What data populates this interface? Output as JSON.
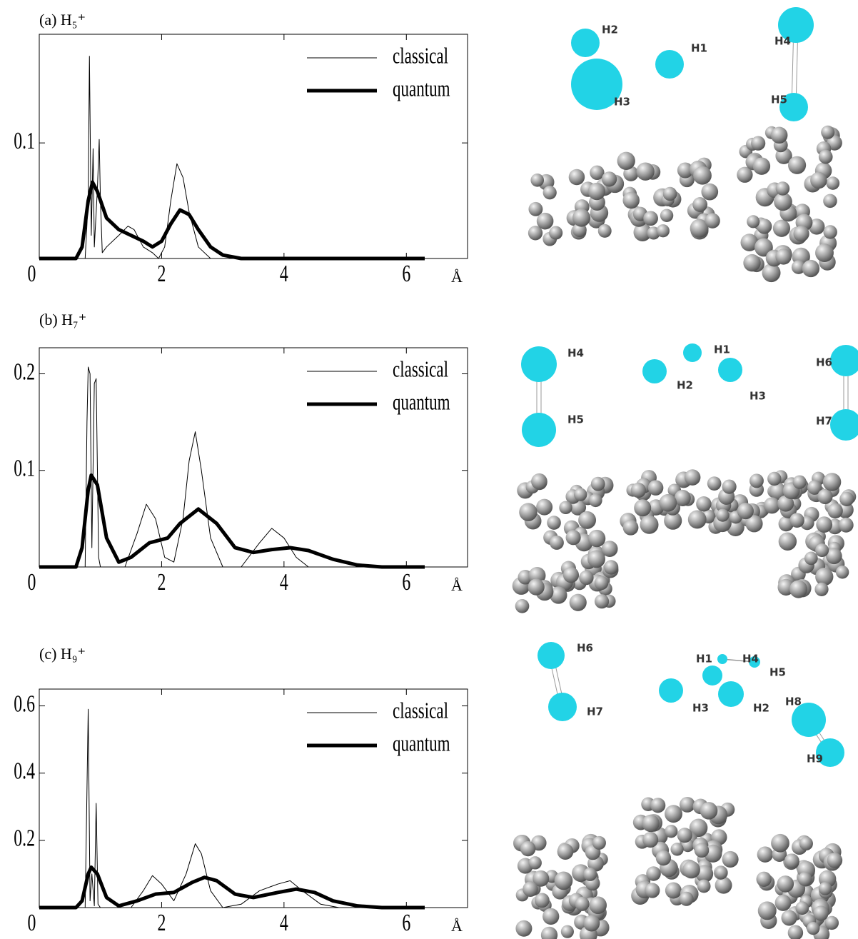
{
  "chart_data": [
    {
      "type": "line",
      "title": "(a) H₅⁺",
      "x_label": "Å",
      "xlim": [
        0,
        7
      ],
      "ylim": [
        0,
        0.194
      ],
      "xticks": [
        0,
        2,
        4,
        6
      ],
      "yticks": [
        0.1
      ],
      "legend": "upper right",
      "series": [
        {
          "name": "classical",
          "color": "#000000",
          "width": 1,
          "x": [
            0,
            0.75,
            0.8,
            0.82,
            0.85,
            0.88,
            0.9,
            0.95,
            0.98,
            1.0,
            1.03,
            1.1,
            1.3,
            1.45,
            1.55,
            1.7,
            1.85,
            1.95,
            2.05,
            2.15,
            2.25,
            2.35,
            2.45,
            2.6,
            2.8,
            6.3
          ],
          "values": [
            0,
            0,
            0.05,
            0.175,
            0.02,
            0.095,
            0.01,
            0.06,
            0.103,
            0.05,
            0.005,
            0.01,
            0.02,
            0.028,
            0.025,
            0.01,
            0.005,
            0,
            0.01,
            0.05,
            0.082,
            0.07,
            0.04,
            0.01,
            0,
            0
          ]
        },
        {
          "name": "quantum",
          "color": "#000000",
          "width": 5,
          "x": [
            0,
            0.6,
            0.7,
            0.8,
            0.87,
            0.95,
            1.1,
            1.3,
            1.5,
            1.7,
            1.85,
            2.0,
            2.15,
            2.3,
            2.45,
            2.6,
            2.8,
            3.0,
            3.3,
            6.3
          ],
          "values": [
            0,
            0,
            0.01,
            0.05,
            0.066,
            0.058,
            0.035,
            0.025,
            0.02,
            0.015,
            0.01,
            0.015,
            0.03,
            0.042,
            0.038,
            0.025,
            0.01,
            0.003,
            0,
            0
          ]
        }
      ]
    },
    {
      "type": "line",
      "title": "(b) H₇⁺",
      "x_label": "Å",
      "xlim": [
        0,
        7
      ],
      "ylim": [
        0,
        0.227
      ],
      "xticks": [
        0,
        2,
        4,
        6
      ],
      "yticks": [
        0.1,
        0.2
      ],
      "legend": "upper right",
      "series": [
        {
          "name": "classical",
          "color": "#000000",
          "width": 1,
          "x": [
            0,
            0.75,
            0.78,
            0.8,
            0.83,
            0.86,
            0.9,
            0.93,
            0.97,
            1.0,
            1.4,
            1.6,
            1.75,
            1.9,
            2.05,
            2.2,
            2.35,
            2.45,
            2.55,
            2.65,
            2.8,
            3.0,
            3.3,
            3.6,
            3.8,
            4.0,
            4.2,
            4.4,
            6.3
          ],
          "values": [
            0,
            0,
            0.15,
            0.207,
            0.2,
            0.02,
            0.19,
            0.195,
            0.01,
            0,
            0,
            0.035,
            0.065,
            0.05,
            0.01,
            0.005,
            0.05,
            0.11,
            0.14,
            0.1,
            0.03,
            0,
            0,
            0.025,
            0.04,
            0.03,
            0.01,
            0,
            0
          ]
        },
        {
          "name": "quantum",
          "color": "#000000",
          "width": 5,
          "x": [
            0,
            0.6,
            0.7,
            0.8,
            0.85,
            0.95,
            1.1,
            1.3,
            1.5,
            1.8,
            2.1,
            2.3,
            2.6,
            2.9,
            3.2,
            3.5,
            3.8,
            4.1,
            4.4,
            4.8,
            5.2,
            5.6,
            6.3
          ],
          "values": [
            0,
            0,
            0.02,
            0.08,
            0.095,
            0.085,
            0.03,
            0.005,
            0.01,
            0.025,
            0.03,
            0.045,
            0.06,
            0.045,
            0.02,
            0.015,
            0.018,
            0.02,
            0.017,
            0.008,
            0.002,
            0,
            0
          ]
        }
      ]
    },
    {
      "type": "line",
      "title": "(c) H₉⁺",
      "x_label": "Å",
      "xlim": [
        0,
        7
      ],
      "ylim": [
        0,
        0.65
      ],
      "xticks": [
        0,
        2,
        4,
        6
      ],
      "yticks": [
        0.2,
        0.4,
        0.6
      ],
      "legend": "upper right",
      "series": [
        {
          "name": "classical",
          "color": "#000000",
          "width": 1,
          "x": [
            0,
            0.75,
            0.8,
            0.83,
            0.86,
            0.9,
            0.93,
            0.96,
            1.0,
            1.5,
            1.7,
            1.85,
            2.0,
            2.2,
            2.4,
            2.55,
            2.65,
            2.8,
            3.0,
            3.3,
            3.6,
            3.9,
            4.1,
            4.3,
            4.6,
            4.9,
            6.3
          ],
          "values": [
            0,
            0,
            0.59,
            0.02,
            0.1,
            0.005,
            0.31,
            0.01,
            0,
            0,
            0.05,
            0.095,
            0.07,
            0.02,
            0.1,
            0.19,
            0.16,
            0.05,
            0,
            0.01,
            0.05,
            0.07,
            0.08,
            0.05,
            0.01,
            0,
            0
          ]
        },
        {
          "name": "quantum",
          "color": "#000000",
          "width": 5,
          "x": [
            0,
            0.6,
            0.7,
            0.8,
            0.85,
            0.95,
            1.1,
            1.3,
            1.6,
            1.9,
            2.2,
            2.5,
            2.7,
            2.9,
            3.2,
            3.5,
            3.9,
            4.2,
            4.5,
            4.8,
            5.2,
            5.6,
            6.3
          ],
          "values": [
            0,
            0,
            0.02,
            0.1,
            0.12,
            0.1,
            0.03,
            0.005,
            0.02,
            0.04,
            0.045,
            0.075,
            0.09,
            0.08,
            0.04,
            0.03,
            0.045,
            0.055,
            0.045,
            0.02,
            0.005,
            0,
            0
          ]
        }
      ]
    }
  ],
  "structures": [
    {
      "atoms": [
        "H2",
        "H3",
        "H1",
        "H4",
        "H5"
      ]
    },
    {
      "atoms": [
        "H4",
        "H5",
        "H1",
        "H2",
        "H3",
        "H6",
        "H7"
      ]
    },
    {
      "atoms": [
        "H6",
        "H7",
        "H5",
        "H1",
        "H4",
        "H3",
        "H2",
        "H8",
        "H9"
      ]
    }
  ]
}
